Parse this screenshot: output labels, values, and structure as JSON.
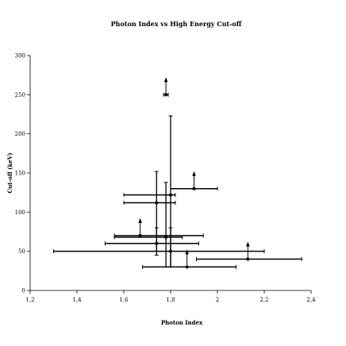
{
  "chart_data": {
    "type": "scatter",
    "title": "Photon Index vs High Energy Cut-off",
    "xlabel": "Photon Index",
    "ylabel": "Cut-off (keV)",
    "xlim": [
      1.2,
      2.4
    ],
    "ylim": [
      0,
      300
    ],
    "x_ticks": [
      "1,2",
      "1,4",
      "1,6",
      "1,8",
      "2",
      "2,2",
      "2,4"
    ],
    "y_ticks": [
      "0",
      "50",
      "100",
      "150",
      "200",
      "250",
      "300"
    ],
    "grid": false,
    "legend": "none",
    "color": "#000000",
    "points": [
      {
        "x": 1.78,
        "y": 250,
        "xerr": [
          1.77,
          1.79
        ],
        "yerr": null,
        "lower_limit": true
      },
      {
        "x": 1.9,
        "y": 130,
        "xerr": [
          1.8,
          2.0
        ],
        "yerr": null,
        "lower_limit": true
      },
      {
        "x": 1.8,
        "y": 122,
        "xerr": [
          1.6,
          1.82
        ],
        "yerr": [
          30,
          223
        ],
        "lower_limit": false
      },
      {
        "x": 1.74,
        "y": 112,
        "xerr": [
          1.6,
          1.82
        ],
        "yerr": [
          45,
          152
        ],
        "lower_limit": false
      },
      {
        "x": 1.67,
        "y": 70,
        "xerr": [
          1.56,
          1.94
        ],
        "yerr": null,
        "lower_limit": true
      },
      {
        "x": 1.78,
        "y": 68,
        "xerr": [
          1.56,
          1.85
        ],
        "yerr": [
          30,
          138
        ],
        "lower_limit": false
      },
      {
        "x": 1.74,
        "y": 60,
        "xerr": [
          1.52,
          1.92
        ],
        "yerr": [
          50,
          80
        ],
        "lower_limit": false
      },
      {
        "x": 1.8,
        "y": 50,
        "xerr": [
          1.3,
          2.2
        ],
        "yerr": [
          30,
          80
        ],
        "lower_limit": false
      },
      {
        "x": 2.13,
        "y": 40,
        "xerr": [
          1.91,
          2.36
        ],
        "yerr": null,
        "lower_limit": true
      },
      {
        "x": 1.87,
        "y": 30,
        "xerr": [
          1.68,
          2.08
        ],
        "yerr": null,
        "lower_limit": true
      }
    ]
  }
}
